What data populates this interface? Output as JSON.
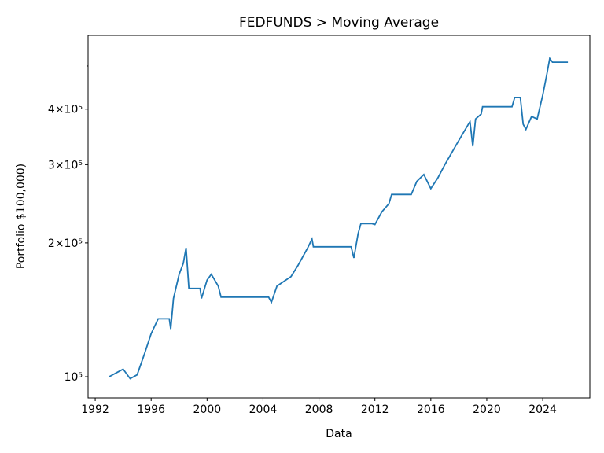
{
  "chart_data": {
    "type": "line",
    "title": "FEDFUNDS > Moving Average",
    "x_label": "Data",
    "y_label": "Portfolio $100,000)",
    "log_y": true,
    "xlim": [
      1991.49,
      2027.37
    ],
    "xticks": [
      1992,
      1996,
      2000,
      2004,
      2008,
      2012,
      2016,
      2020,
      2024
    ],
    "ylim": [
      89600,
      586000
    ],
    "yticks": [
      {
        "value": 100000,
        "label": "10⁵"
      },
      {
        "value": 200000,
        "label": "2×10⁵"
      },
      {
        "value": 300000,
        "label": "3×10⁵"
      },
      {
        "value": 400000,
        "label": "4×10⁵"
      }
    ],
    "yminor_ticks": [
      500000
    ],
    "series": [
      {
        "color": "#1f77b4",
        "x": [
          1993.0,
          1993.5,
          1994.0,
          1994.5,
          1995.0,
          1995.5,
          1996.0,
          1996.5,
          1997.3,
          1997.4,
          1997.6,
          1998.0,
          1998.3,
          1998.5,
          1998.7,
          1999.5,
          1999.6,
          2000.0,
          2000.3,
          2000.8,
          2001.0,
          2004.4,
          2004.6,
          2005.0,
          2006.0,
          2006.5,
          2007.2,
          2007.5,
          2007.6,
          2010.3,
          2010.5,
          2010.8,
          2011.0,
          2011.8,
          2012.0,
          2012.5,
          2013.0,
          2013.2,
          2014.6,
          2015.0,
          2015.5,
          2016.0,
          2016.5,
          2017.0,
          2018.0,
          2018.8,
          2019.0,
          2019.2,
          2019.6,
          2019.7,
          2021.8,
          2022.0,
          2022.4,
          2022.6,
          2022.8,
          2023.2,
          2023.6,
          2024.0,
          2024.3,
          2024.5,
          2024.7,
          2025.8
        ],
        "values": [
          100000,
          102000,
          104000,
          99000,
          101000,
          112000,
          125000,
          135000,
          135000,
          128000,
          150000,
          170000,
          180000,
          195000,
          158000,
          158000,
          150000,
          165000,
          170000,
          160000,
          151000,
          151000,
          147000,
          160000,
          168000,
          178000,
          195000,
          204000,
          196000,
          196000,
          185000,
          210000,
          221000,
          221000,
          220000,
          235000,
          245000,
          257000,
          257000,
          275000,
          285000,
          265000,
          280000,
          300000,
          340000,
          375000,
          330000,
          380000,
          390000,
          405000,
          405000,
          425000,
          425000,
          370000,
          360000,
          385000,
          380000,
          430000,
          480000,
          520000,
          510000,
          510000
        ]
      }
    ]
  }
}
